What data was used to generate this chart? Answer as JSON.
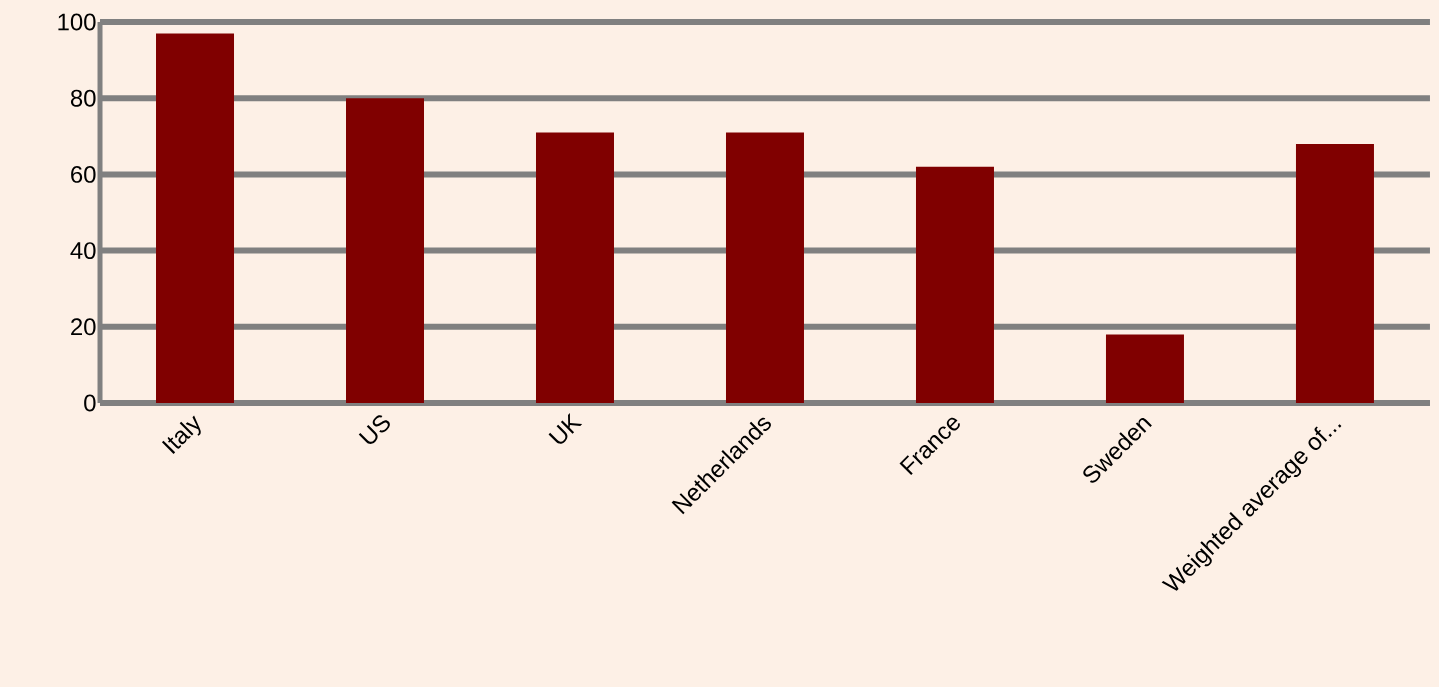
{
  "chart_data": {
    "type": "bar",
    "categories": [
      "Italy",
      "US",
      "UK",
      "Netherlands",
      "France",
      "Sweden",
      "Weighted average of..."
    ],
    "values": [
      97,
      80,
      71,
      71,
      62,
      18,
      68
    ],
    "color": "#800000",
    "ylim": [
      0,
      100
    ],
    "yticks": [
      0,
      20,
      40,
      60,
      80,
      100
    ],
    "grid": "y"
  }
}
